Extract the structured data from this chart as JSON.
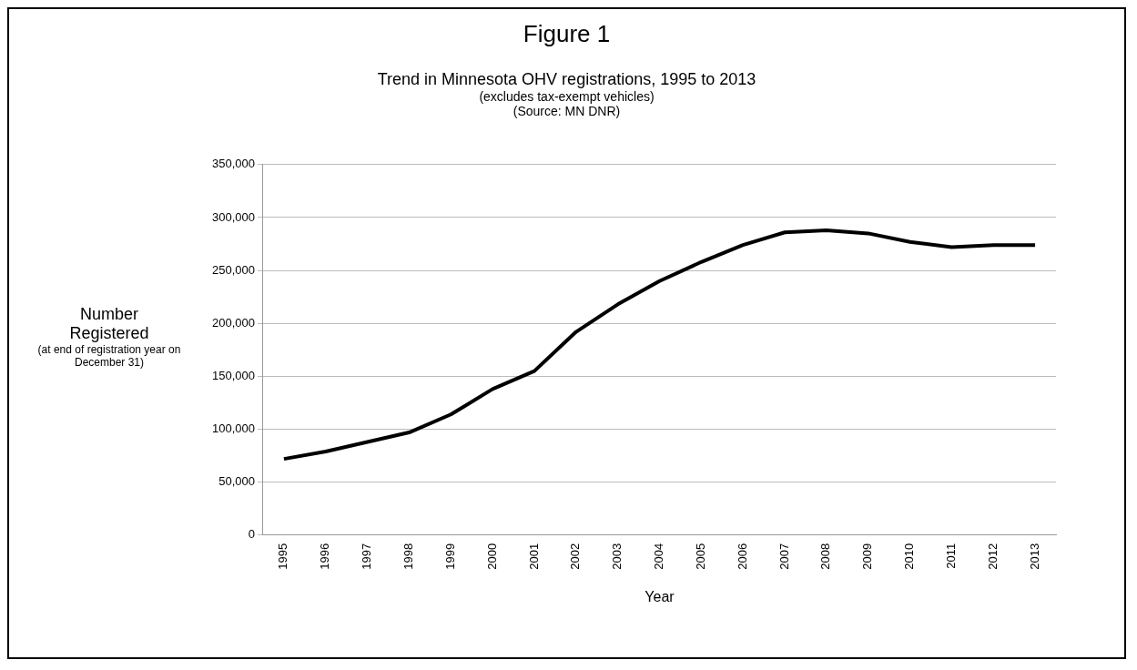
{
  "chart_data": {
    "type": "line",
    "title": "Figure 1",
    "subtitle": "Trend in Minnesota OHV registrations, 1995 to 2013",
    "annotations": [
      "(excludes tax-exempt vehicles)",
      "(Source: MN DNR)",
      "(at end of registration year on December 31)"
    ],
    "xlabel": "Year",
    "ylabel": "Number Registered",
    "categories": [
      "1995",
      "1996",
      "1997",
      "1998",
      "1999",
      "2000",
      "2001",
      "2002",
      "2003",
      "2004",
      "2005",
      "2006",
      "2007",
      "2008",
      "2009",
      "2010",
      "2011",
      "2012",
      "2013"
    ],
    "series": [
      {
        "color": "#000000",
        "values": [
          72000,
          79000,
          88000,
          97000,
          114000,
          138000,
          155000,
          192000,
          218000,
          240000,
          258000,
          274000,
          286000,
          288000,
          285000,
          277000,
          272000,
          274000,
          274000
        ]
      }
    ],
    "ylim": [
      0,
      350000
    ],
    "yticks": [
      {
        "value": 0,
        "label": "0"
      },
      {
        "value": 50000,
        "label": "50,000"
      },
      {
        "value": 100000,
        "label": "100,000"
      },
      {
        "value": 150000,
        "label": "150,000"
      },
      {
        "value": 200000,
        "label": "200,000"
      },
      {
        "value": 250000,
        "label": "250,000"
      },
      {
        "value": 300000,
        "label": "300,000"
      },
      {
        "value": 350000,
        "label": "350,000"
      }
    ],
    "grid": "y",
    "legend": false,
    "marker": "none",
    "line_style": "solid"
  }
}
